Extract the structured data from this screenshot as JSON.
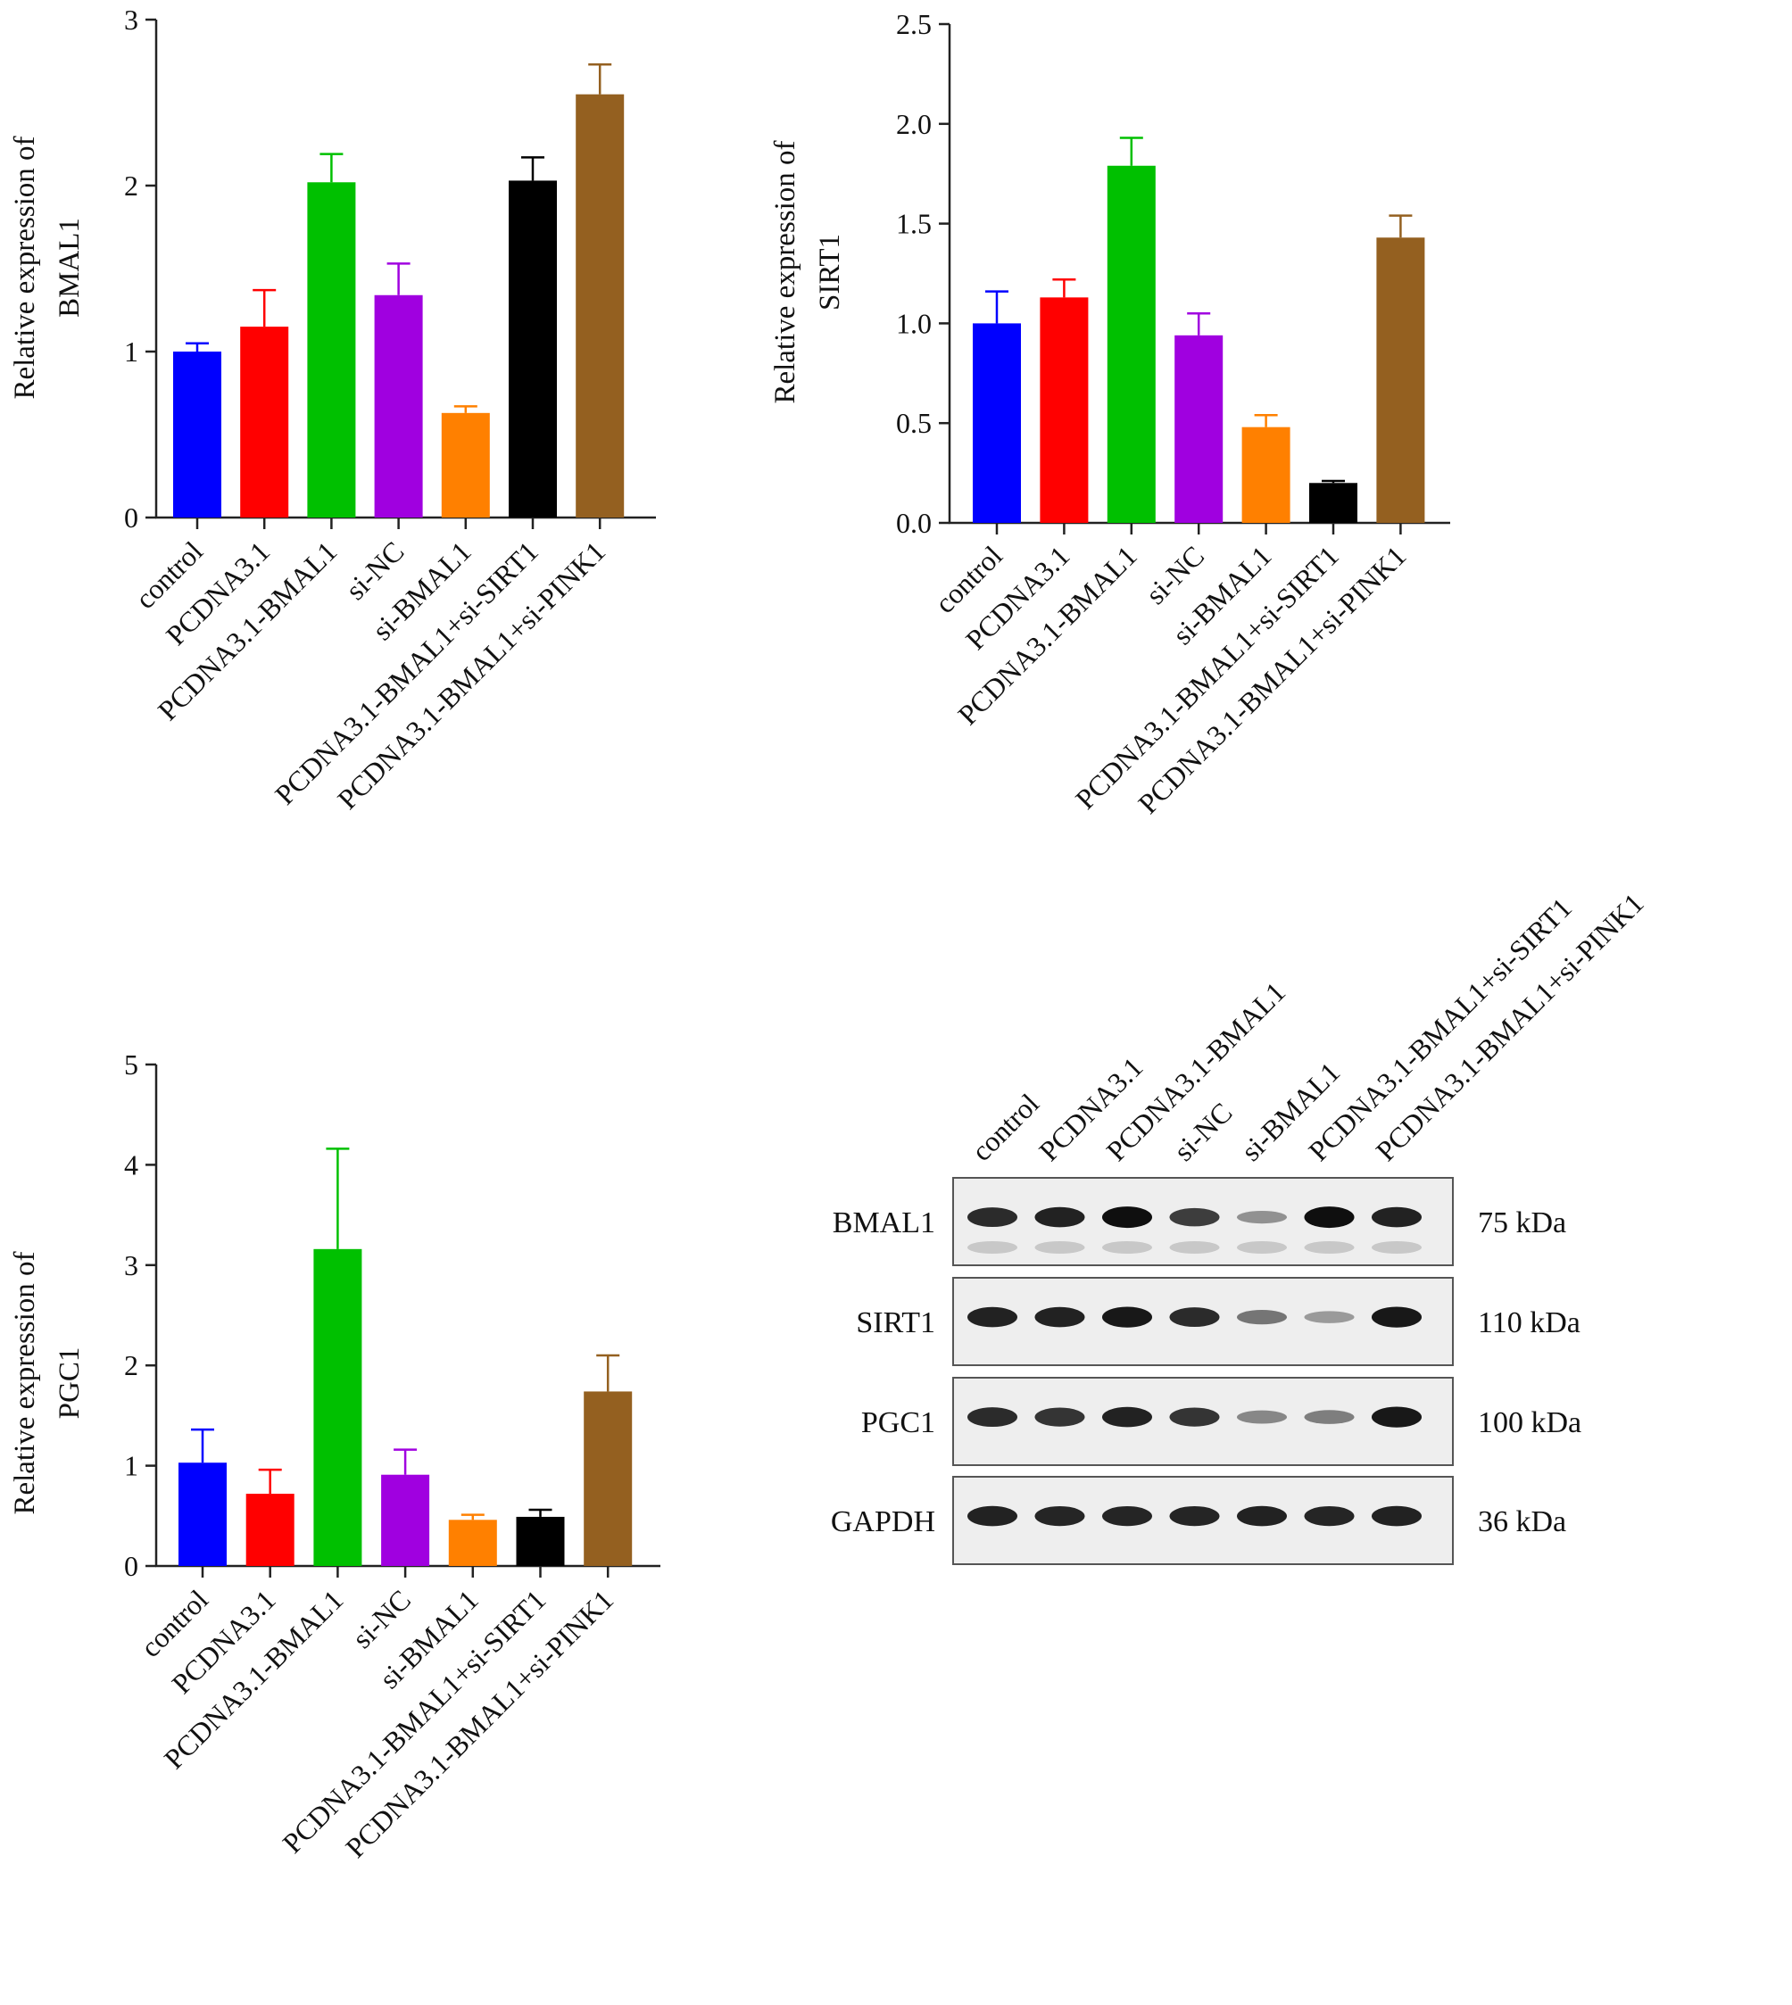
{
  "chart_data": [
    {
      "type": "bar",
      "title": "",
      "xlabel": "",
      "ylabel": [
        "Relative expression of",
        "BMAL1"
      ],
      "ylim": [
        0,
        3
      ],
      "yticks": [
        0,
        1,
        2,
        3
      ],
      "categories": [
        "control",
        "PCDNA3.1",
        "PCDNA3.1-BMAL1",
        "si-NC",
        "si-BMAL1",
        "PCDNA3.1-BMAL1+si-SIRT1",
        "PCDNA3.1-BMAL1+si-PINK1"
      ],
      "values": [
        1.0,
        1.15,
        2.02,
        1.34,
        0.63,
        2.03,
        2.55
      ],
      "errors": [
        0.05,
        0.22,
        0.17,
        0.19,
        0.04,
        0.14,
        0.18
      ],
      "colors": [
        "#0000ff",
        "#ff0000",
        "#00c000",
        "#a000e0",
        "#ff8000",
        "#000000",
        "#946020"
      ],
      "grid": false,
      "legend": "none"
    },
    {
      "type": "bar",
      "title": "",
      "xlabel": "",
      "ylabel": [
        "Relative expression of",
        "SIRT1"
      ],
      "ylim": [
        0,
        2.5
      ],
      "yticks": [
        "0.0",
        "0.5",
        "1.0",
        "1.5",
        "2.0",
        "2.5"
      ],
      "categories": [
        "control",
        "PCDNA3.1",
        "PCDNA3.1-BMAL1",
        "si-NC",
        "si-BMAL1",
        "PCDNA3.1-BMAL1+si-SIRT1",
        "PCDNA3.1-BMAL1+si-PINK1"
      ],
      "values": [
        1.0,
        1.13,
        1.79,
        0.94,
        0.48,
        0.2,
        1.43
      ],
      "errors": [
        0.16,
        0.09,
        0.14,
        0.11,
        0.06,
        0.01,
        0.11
      ],
      "colors": [
        "#0000ff",
        "#ff0000",
        "#00c000",
        "#a000e0",
        "#ff8000",
        "#000000",
        "#946020"
      ],
      "grid": false,
      "legend": "none"
    },
    {
      "type": "bar",
      "title": "",
      "xlabel": "",
      "ylabel": [
        "Relative expression of",
        "PGC1"
      ],
      "ylim": [
        0,
        5
      ],
      "yticks": [
        0,
        1,
        2,
        3,
        4,
        5
      ],
      "categories": [
        "control",
        "PCDNA3.1",
        "PCDNA3.1-BMAL1",
        "si-NC",
        "si-BMAL1",
        "PCDNA3.1-BMAL1+si-SIRT1",
        "PCDNA3.1-BMAL1+si-PINK1"
      ],
      "values": [
        1.03,
        0.72,
        3.16,
        0.91,
        0.46,
        0.49,
        1.74
      ],
      "errors": [
        0.33,
        0.24,
        1.0,
        0.25,
        0.05,
        0.07,
        0.36
      ],
      "colors": [
        "#0000ff",
        "#ff0000",
        "#00c000",
        "#a000e0",
        "#ff8000",
        "#000000",
        "#946020"
      ],
      "grid": false,
      "legend": "none"
    }
  ],
  "western_blot": {
    "lanes": [
      "control",
      "PCDNA3.1",
      "PCDNA3.1-BMAL1",
      "si-NC",
      "si-BMAL1",
      "PCDNA3.1-BMAL1+si-SIRT1",
      "PCDNA3.1-BMAL1+si-PINK1"
    ],
    "rows": [
      {
        "protein": "BMAL1",
        "size": "75 kDa",
        "intensities": [
          0.85,
          0.9,
          1.0,
          0.75,
          0.3,
          1.0,
          0.9
        ]
      },
      {
        "protein": "SIRT1",
        "size": "110 kDa",
        "intensities": [
          0.9,
          0.9,
          0.95,
          0.85,
          0.45,
          0.25,
          0.95
        ]
      },
      {
        "protein": "PGC1",
        "size": "100 kDa",
        "intensities": [
          0.85,
          0.8,
          0.9,
          0.8,
          0.35,
          0.4,
          0.95
        ]
      },
      {
        "protein": "GAPDH",
        "size": "36 kDa",
        "intensities": [
          0.9,
          0.88,
          0.88,
          0.88,
          0.9,
          0.88,
          0.9
        ]
      }
    ]
  }
}
